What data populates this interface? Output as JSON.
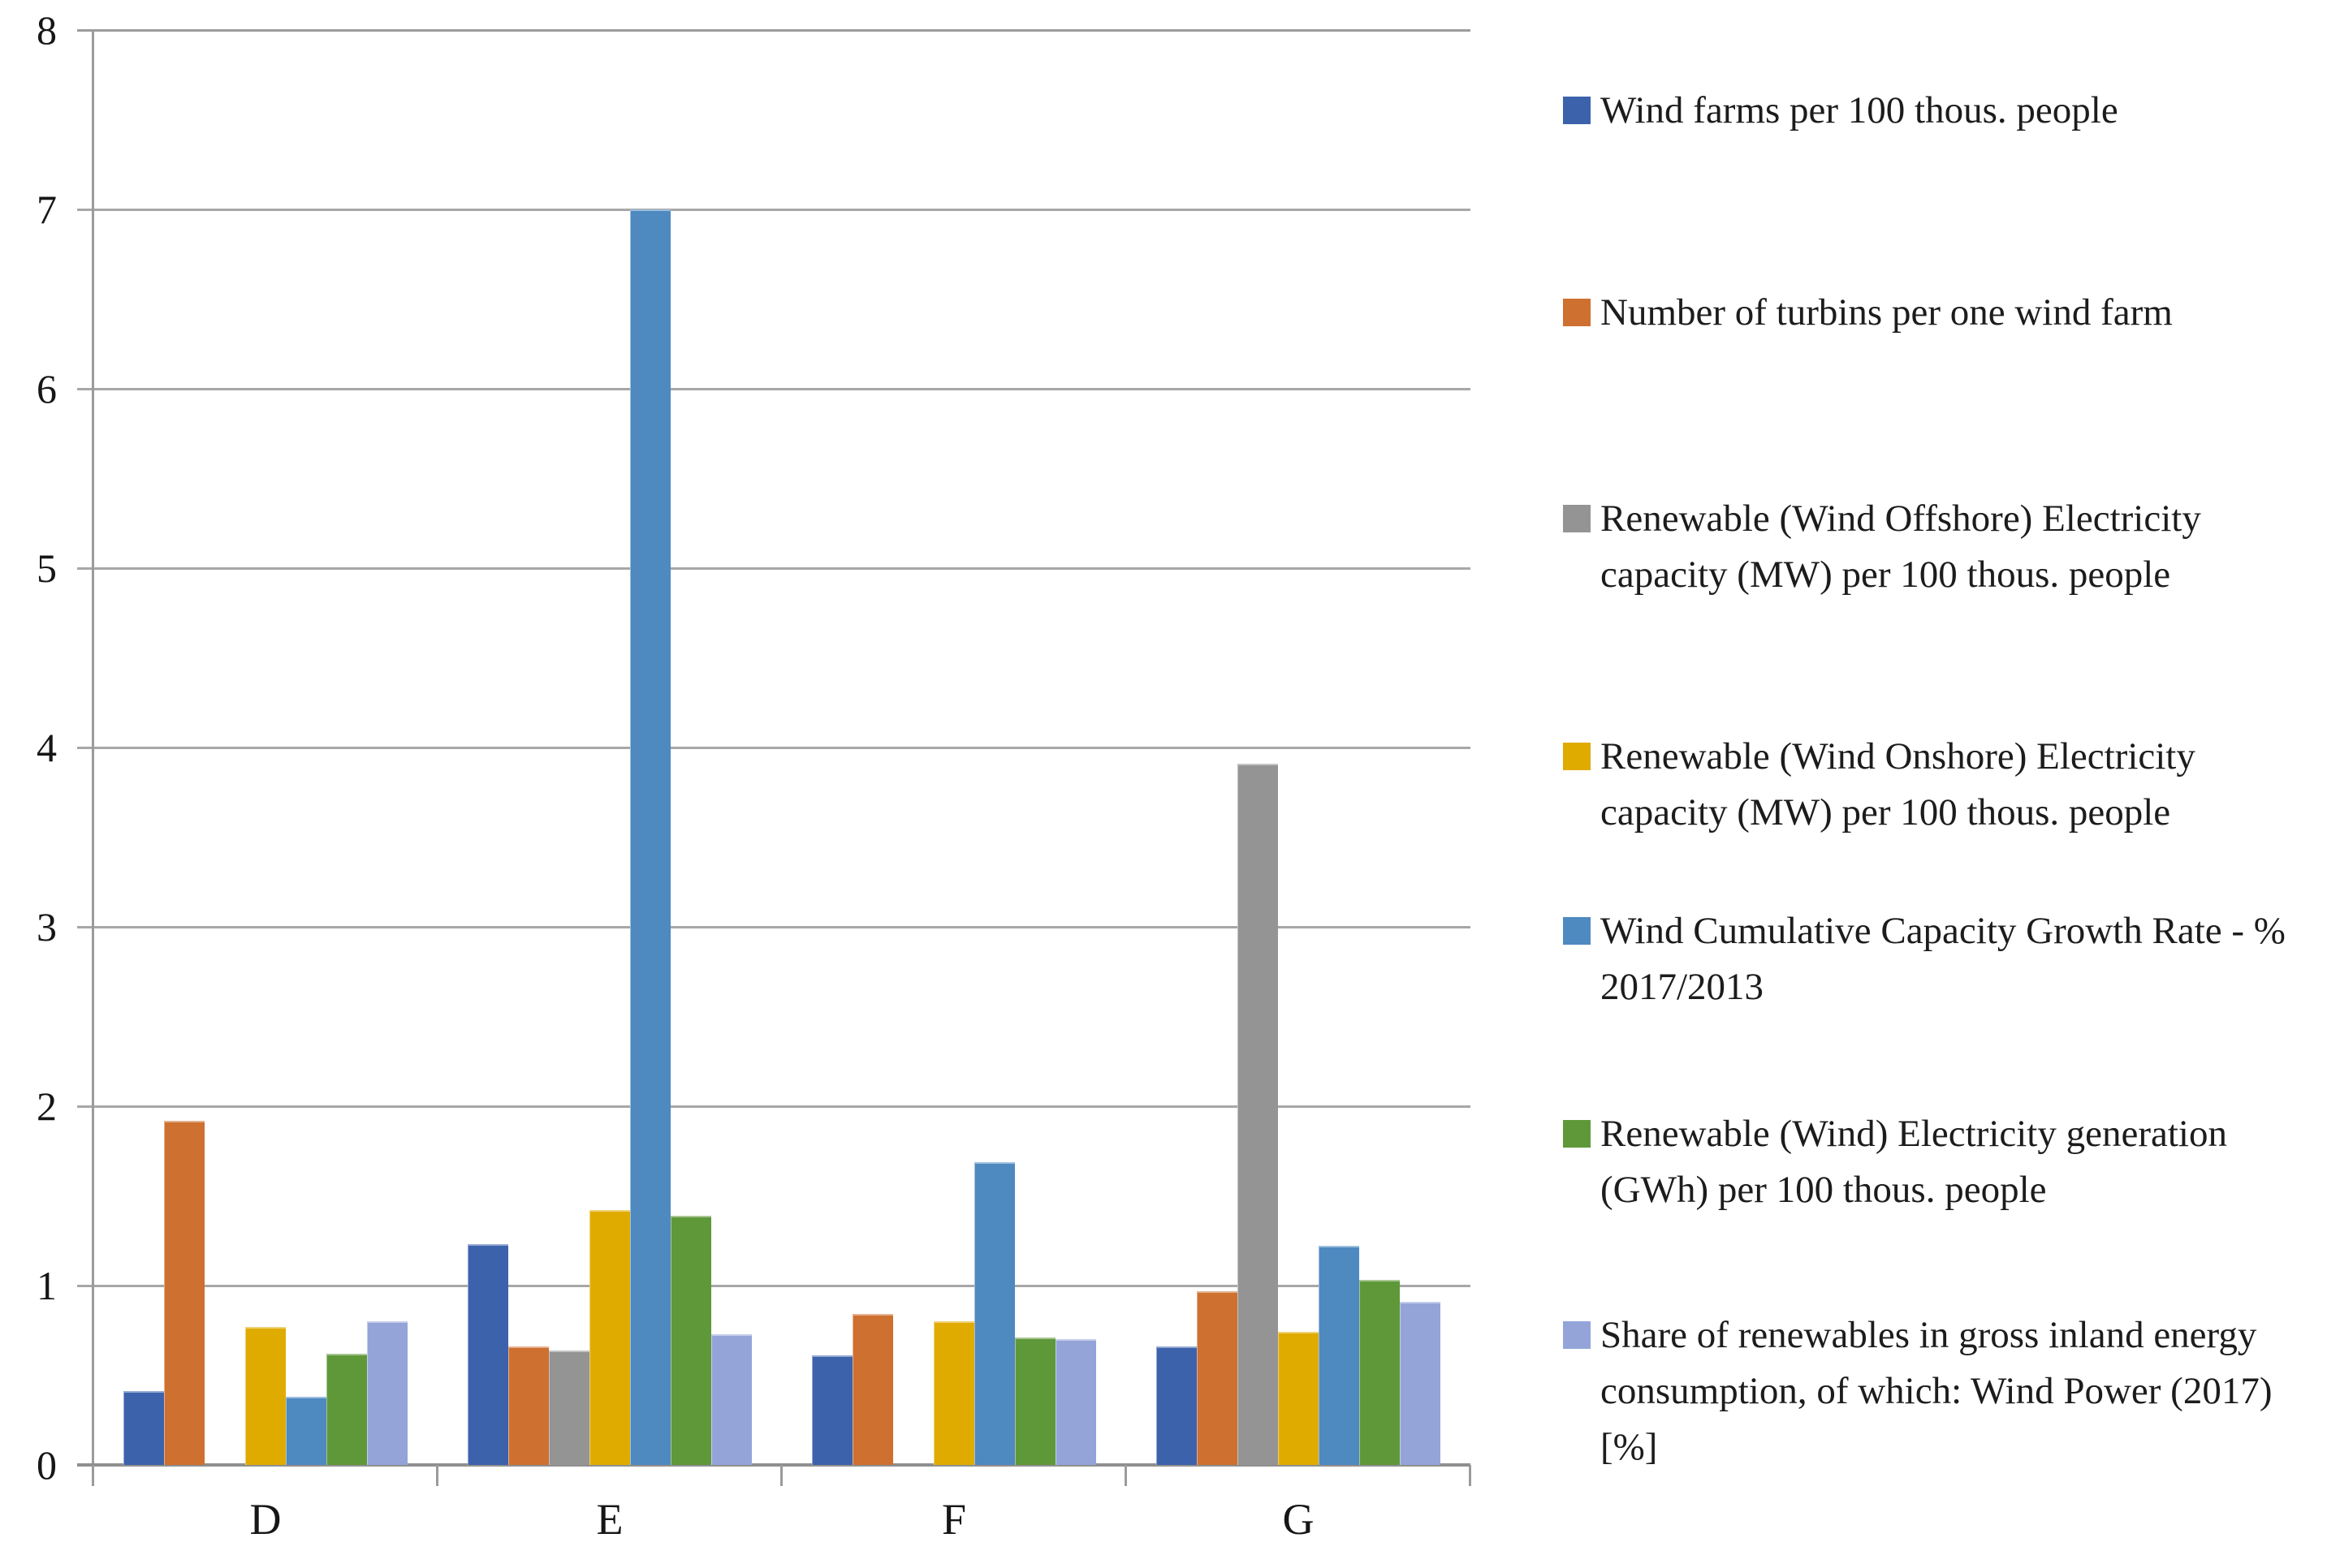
{
  "chart_data": {
    "type": "bar",
    "title": "",
    "xlabel": "",
    "ylabel": "",
    "categories": [
      "D",
      "E",
      "F",
      "G"
    ],
    "series": [
      {
        "name": "Wind farms per 100 thous. people",
        "color": "#3c62ac",
        "values": [
          0.41,
          1.23,
          0.61,
          0.66
        ]
      },
      {
        "name": "Number of turbins per one wind farm",
        "color": "#ce7030",
        "values": [
          1.92,
          0.66,
          0.84,
          0.97
        ]
      },
      {
        "name": "Renewable (Wind Offshore) Electricity capacity (MW) per 100 thous. people",
        "color": "#949494",
        "values": [
          0,
          0.64,
          0,
          3.91
        ]
      },
      {
        "name": "Renewable (Wind Onshore) Electricity capacity (MW) per 100 thous. people",
        "color": "#e0ab00",
        "values": [
          0.77,
          1.42,
          0.8,
          0.74
        ]
      },
      {
        "name": "Wind Cumulative Capacity Growth Rate - % 2017/2013",
        "color": "#4e89c0",
        "values": [
          0.38,
          7.0,
          1.69,
          1.22
        ]
      },
      {
        "name": "Renewable (Wind) Electricity generation (GWh) per 100 thous. people",
        "color": "#5f9839",
        "values": [
          0.62,
          1.39,
          0.71,
          1.03
        ]
      },
      {
        "name": "Share of renewables in gross inland energy consumption, of which: Wind Power (2017) [%]",
        "color": "#94a4d9",
        "values": [
          0.8,
          0.73,
          0.7,
          0.91
        ]
      }
    ],
    "ylim": [
      0,
      8
    ],
    "yticks": [
      "0",
      "1",
      "2",
      "3",
      "4",
      "5",
      "6",
      "7",
      "8"
    ],
    "grid": true,
    "legend_position": "right"
  }
}
